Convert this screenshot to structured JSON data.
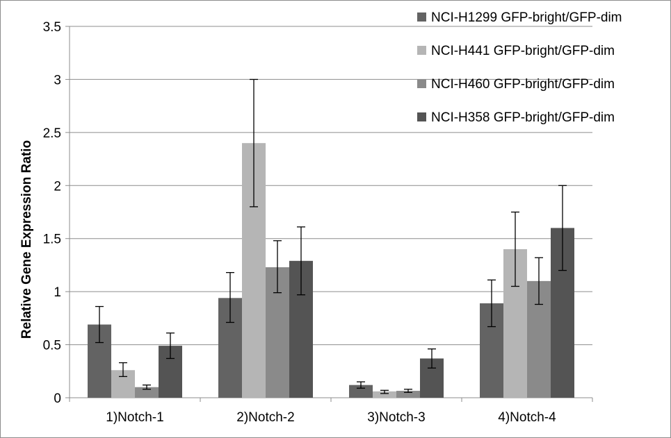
{
  "chart_data": {
    "type": "bar",
    "title": "",
    "xlabel": "",
    "ylabel": "Relative Gene Expression Ratio",
    "ylim": [
      0,
      3.5
    ],
    "yticks": [
      0,
      0.5,
      1,
      1.5,
      2,
      2.5,
      3,
      3.5
    ],
    "ytick_labels": [
      "0",
      "0.5",
      "1",
      "1.5",
      "2",
      "2.5",
      "3",
      "3.5"
    ],
    "grid": true,
    "legend_position": "top-right",
    "categories": [
      "1)Notch-1",
      "2)Notch-2",
      "3)Notch-3",
      "4)Notch-4"
    ],
    "series": [
      {
        "name": "NCI-H1299 GFP-bright/GFP-dim",
        "color": "#636363",
        "values": [
          0.69,
          0.94,
          0.12,
          0.89
        ],
        "err_low": [
          0.52,
          0.71,
          0.09,
          0.67
        ],
        "err_high": [
          0.86,
          1.18,
          0.15,
          1.11
        ]
      },
      {
        "name": "NCI-H441 GFP-bright/GFP-dim",
        "color": "#b5b5b5",
        "values": [
          0.26,
          2.4,
          0.06,
          1.4
        ],
        "err_low": [
          0.2,
          1.8,
          0.04,
          1.05
        ],
        "err_high": [
          0.33,
          3.0,
          0.07,
          1.75
        ]
      },
      {
        "name": "NCI-H460 GFP-bright/GFP-dim",
        "color": "#8a8a8a",
        "values": [
          0.1,
          1.23,
          0.065,
          1.1
        ],
        "err_low": [
          0.08,
          0.99,
          0.05,
          0.88
        ],
        "err_high": [
          0.12,
          1.48,
          0.08,
          1.32
        ]
      },
      {
        "name": "NCI-H358 GFP-bright/GFP-dim",
        "color": "#545454",
        "values": [
          0.49,
          1.29,
          0.37,
          1.6
        ],
        "err_low": [
          0.37,
          0.97,
          0.28,
          1.2
        ],
        "err_high": [
          0.61,
          1.61,
          0.46,
          2.0
        ]
      }
    ]
  }
}
